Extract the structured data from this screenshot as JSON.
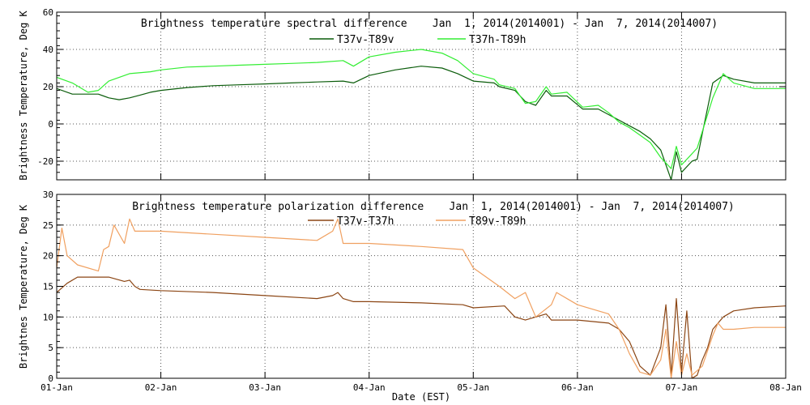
{
  "xlabel": "Date (EST)",
  "x_ticks": [
    "01-Jan",
    "02-Jan",
    "03-Jan",
    "04-Jan",
    "05-Jan",
    "06-Jan",
    "07-Jan",
    "08-Jan"
  ],
  "colors": {
    "T37v-T89v": "#0a5c0a",
    "T37h-T89h": "#33ee33",
    "T37v-T37h": "#8b4513",
    "T89v-T89h": "#f0a060",
    "grid": "#555555",
    "text": "#000000"
  },
  "chart_data": [
    {
      "type": "line",
      "title": "Brightness temperature spectral difference    Jan  1, 2014(2014001) - Jan  7, 2014(2014007)",
      "xlabel": "",
      "ylabel": "Brightness Temperature, Deg K",
      "xlim": [
        0,
        7
      ],
      "ylim": [
        -30,
        60
      ],
      "y_ticks": [
        -20,
        0,
        20,
        40,
        60
      ],
      "grid": true,
      "legend": "top-center",
      "series": [
        {
          "name": "T37v-T89v",
          "points": [
            [
              0,
              19
            ],
            [
              0.15,
              16
            ],
            [
              0.3,
              16
            ],
            [
              0.4,
              16
            ],
            [
              0.5,
              14
            ],
            [
              0.6,
              13
            ],
            [
              0.7,
              14
            ],
            [
              0.8,
              15.5
            ],
            [
              0.9,
              17
            ],
            [
              1.0,
              18
            ],
            [
              1.25,
              19.5
            ],
            [
              1.5,
              20.5
            ],
            [
              1.75,
              21
            ],
            [
              2.0,
              21.5
            ],
            [
              2.25,
              22
            ],
            [
              2.5,
              22.5
            ],
            [
              2.75,
              23
            ],
            [
              2.85,
              22
            ],
            [
              3.0,
              26
            ],
            [
              3.25,
              29
            ],
            [
              3.5,
              31
            ],
            [
              3.7,
              30
            ],
            [
              3.85,
              27
            ],
            [
              4.0,
              23
            ],
            [
              4.2,
              22
            ],
            [
              4.25,
              20
            ],
            [
              4.4,
              18
            ],
            [
              4.5,
              12
            ],
            [
              4.6,
              10
            ],
            [
              4.7,
              18
            ],
            [
              4.75,
              15
            ],
            [
              4.9,
              15
            ],
            [
              5.05,
              8
            ],
            [
              5.2,
              8
            ],
            [
              5.3,
              5
            ],
            [
              5.4,
              2
            ],
            [
              5.5,
              -1
            ],
            [
              5.6,
              -4
            ],
            [
              5.7,
              -8
            ],
            [
              5.8,
              -14
            ],
            [
              5.9,
              -30
            ],
            [
              5.95,
              -15
            ],
            [
              6.0,
              -26
            ],
            [
              6.1,
              -20
            ],
            [
              6.15,
              -19
            ],
            [
              6.2,
              -5
            ],
            [
              6.3,
              22
            ],
            [
              6.4,
              26
            ],
            [
              6.5,
              24
            ],
            [
              6.7,
              22
            ],
            [
              7.0,
              22
            ]
          ]
        },
        {
          "name": "T37h-T89h",
          "points": [
            [
              0,
              25
            ],
            [
              0.15,
              22
            ],
            [
              0.3,
              17
            ],
            [
              0.4,
              18
            ],
            [
              0.5,
              23
            ],
            [
              0.7,
              27
            ],
            [
              0.9,
              28
            ],
            [
              1.0,
              29
            ],
            [
              1.25,
              30.5
            ],
            [
              1.5,
              31
            ],
            [
              1.75,
              31.5
            ],
            [
              2.0,
              32
            ],
            [
              2.25,
              32.5
            ],
            [
              2.5,
              33
            ],
            [
              2.75,
              34
            ],
            [
              2.85,
              31
            ],
            [
              3.0,
              36
            ],
            [
              3.25,
              38.5
            ],
            [
              3.5,
              40
            ],
            [
              3.7,
              38
            ],
            [
              3.85,
              34
            ],
            [
              4.0,
              27
            ],
            [
              4.2,
              24
            ],
            [
              4.25,
              21
            ],
            [
              4.4,
              19
            ],
            [
              4.5,
              11
            ],
            [
              4.6,
              12
            ],
            [
              4.7,
              20
            ],
            [
              4.75,
              16
            ],
            [
              4.9,
              17
            ],
            [
              5.05,
              9
            ],
            [
              5.2,
              10
            ],
            [
              5.3,
              6
            ],
            [
              5.4,
              1
            ],
            [
              5.5,
              -2
            ],
            [
              5.6,
              -6
            ],
            [
              5.7,
              -10
            ],
            [
              5.8,
              -18
            ],
            [
              5.9,
              -24
            ],
            [
              5.95,
              -12
            ],
            [
              6.0,
              -22
            ],
            [
              6.1,
              -16
            ],
            [
              6.15,
              -13
            ],
            [
              6.2,
              -4
            ],
            [
              6.3,
              14
            ],
            [
              6.4,
              27
            ],
            [
              6.5,
              22
            ],
            [
              6.7,
              19
            ],
            [
              7.0,
              19
            ]
          ]
        }
      ]
    },
    {
      "type": "line",
      "title": "Brightness temperature polarization difference    Jan  1, 2014(2014001) - Jan  7, 2014(2014007)",
      "xlabel": "Date (EST)",
      "ylabel": "Brightnes Temperature, Deg K",
      "xlim": [
        0,
        7
      ],
      "ylim": [
        0,
        30
      ],
      "y_ticks": [
        0,
        5,
        10,
        15,
        20,
        25,
        30
      ],
      "grid": true,
      "legend": "top-center",
      "series": [
        {
          "name": "T37v-T37h",
          "points": [
            [
              0,
              14
            ],
            [
              0.1,
              15.5
            ],
            [
              0.2,
              16.5
            ],
            [
              0.5,
              16.5
            ],
            [
              0.65,
              15.8
            ],
            [
              0.7,
              16
            ],
            [
              0.75,
              15
            ],
            [
              0.8,
              14.5
            ],
            [
              1.0,
              14.3
            ],
            [
              1.5,
              14
            ],
            [
              2.0,
              13.5
            ],
            [
              2.5,
              13
            ],
            [
              2.65,
              13.5
            ],
            [
              2.7,
              14
            ],
            [
              2.75,
              13
            ],
            [
              2.85,
              12.5
            ],
            [
              3.0,
              12.5
            ],
            [
              3.5,
              12.3
            ],
            [
              3.9,
              12
            ],
            [
              4.0,
              11.5
            ],
            [
              4.3,
              11.8
            ],
            [
              4.4,
              10
            ],
            [
              4.5,
              9.5
            ],
            [
              4.7,
              10.5
            ],
            [
              4.75,
              9.5
            ],
            [
              5.0,
              9.5
            ],
            [
              5.3,
              9
            ],
            [
              5.4,
              8
            ],
            [
              5.5,
              6
            ],
            [
              5.6,
              2
            ],
            [
              5.7,
              0.5
            ],
            [
              5.8,
              5
            ],
            [
              5.85,
              12
            ],
            [
              5.9,
              0.5
            ],
            [
              5.95,
              13
            ],
            [
              6.0,
              1
            ],
            [
              6.05,
              11
            ],
            [
              6.1,
              0
            ],
            [
              6.15,
              0.5
            ],
            [
              6.2,
              3
            ],
            [
              6.25,
              5
            ],
            [
              6.3,
              8
            ],
            [
              6.4,
              10
            ],
            [
              6.5,
              11
            ],
            [
              6.7,
              11.5
            ],
            [
              7.0,
              11.8
            ]
          ]
        },
        {
          "name": "T89v-T89h",
          "points": [
            [
              0,
              18
            ],
            [
              0.05,
              24.5
            ],
            [
              0.1,
              20
            ],
            [
              0.2,
              18.5
            ],
            [
              0.4,
              17.5
            ],
            [
              0.45,
              21
            ],
            [
              0.5,
              21.5
            ],
            [
              0.55,
              25
            ],
            [
              0.65,
              22
            ],
            [
              0.7,
              26
            ],
            [
              0.75,
              24
            ],
            [
              1.0,
              24
            ],
            [
              1.5,
              23.5
            ],
            [
              2.0,
              23
            ],
            [
              2.5,
              22.5
            ],
            [
              2.65,
              24
            ],
            [
              2.7,
              26
            ],
            [
              2.75,
              22
            ],
            [
              2.85,
              22
            ],
            [
              3.0,
              22
            ],
            [
              3.5,
              21.5
            ],
            [
              3.9,
              21
            ],
            [
              4.0,
              18
            ],
            [
              4.25,
              15
            ],
            [
              4.4,
              13
            ],
            [
              4.5,
              14
            ],
            [
              4.6,
              10
            ],
            [
              4.75,
              12
            ],
            [
              4.8,
              14
            ],
            [
              5.0,
              12
            ],
            [
              5.3,
              10.5
            ],
            [
              5.4,
              8
            ],
            [
              5.5,
              4
            ],
            [
              5.6,
              1
            ],
            [
              5.7,
              0.5
            ],
            [
              5.8,
              3
            ],
            [
              5.85,
              8
            ],
            [
              5.9,
              0
            ],
            [
              5.95,
              6
            ],
            [
              6.0,
              0.5
            ],
            [
              6.05,
              4
            ],
            [
              6.1,
              0.5
            ],
            [
              6.2,
              2
            ],
            [
              6.3,
              7
            ],
            [
              6.35,
              9
            ],
            [
              6.4,
              8
            ],
            [
              6.5,
              8
            ],
            [
              6.7,
              8.3
            ],
            [
              7.0,
              8.3
            ]
          ]
        }
      ]
    }
  ]
}
